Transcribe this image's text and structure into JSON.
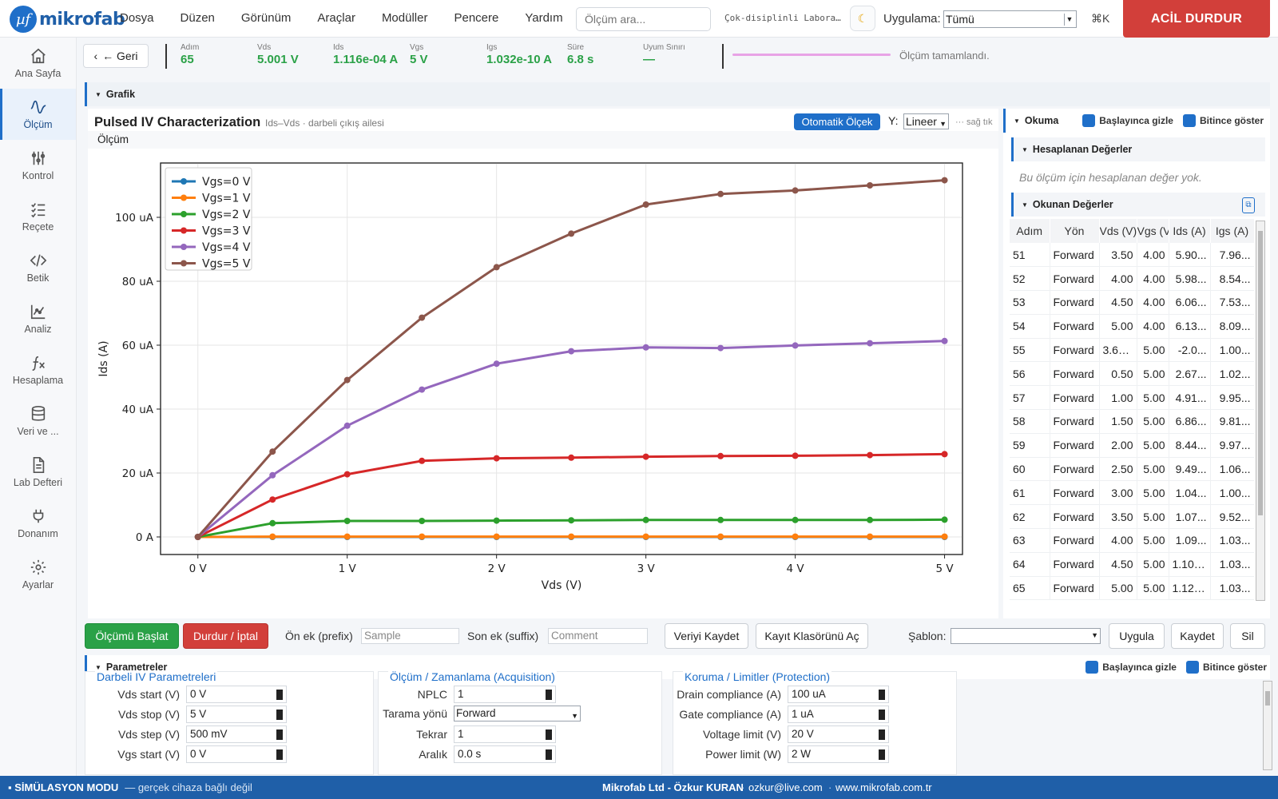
{
  "app": {
    "logo_mark": "µf",
    "logo_text": "mikrofab"
  },
  "menu": [
    "Dosya",
    "Düzen",
    "Görünüm",
    "Araçlar",
    "Modüller",
    "Pencere",
    "Yardım"
  ],
  "search": {
    "placeholder": "Ölçüm ara..."
  },
  "lab_name": "Çok-disiplinli Laboratuvar",
  "application": {
    "label": "Uygulama:",
    "value": "Tümü"
  },
  "shortcut": "⌘K",
  "estop": "ACİL DURDUR",
  "sidebar": [
    {
      "label": "Ana Sayfa",
      "icon": "home-icon"
    },
    {
      "label": "Ölçüm",
      "icon": "waveform-icon",
      "active": true
    },
    {
      "label": "Kontrol",
      "icon": "sliders-icon"
    },
    {
      "label": "Reçete",
      "icon": "checklist-icon"
    },
    {
      "label": "Betik",
      "icon": "code-icon"
    },
    {
      "label": "Analiz",
      "icon": "analytics-icon"
    },
    {
      "label": "Hesaplama",
      "icon": "function-icon"
    },
    {
      "label": "Veri ve ...",
      "icon": "database-icon"
    },
    {
      "label": "Lab Defteri",
      "icon": "notebook-icon"
    },
    {
      "label": "Donanım",
      "icon": "plug-icon"
    },
    {
      "label": "Ayarlar",
      "icon": "gear-icon"
    }
  ],
  "status": {
    "back": "← Geri",
    "items": [
      {
        "key": "Adım",
        "value": "65"
      },
      {
        "key": "Vds",
        "value": "5.001 V"
      },
      {
        "key": "Ids",
        "value": "1.116e-04 A"
      },
      {
        "key": "Vgs",
        "value": "5 V"
      },
      {
        "key": "Igs",
        "value": "1.032e-10 A"
      },
      {
        "key": "Süre",
        "value": "6.8 s"
      },
      {
        "key": "Uyum Sınırı",
        "value": "—"
      }
    ],
    "progress": 1.0,
    "progress_text": "Ölçüm tamamlandı."
  },
  "graph_panel": {
    "title": "Grafik"
  },
  "chart": {
    "title": "Pulsed IV Characterization",
    "subtitle": "Ids–Vds · darbeli çıkış ailesi",
    "autoscale": "Otomatik Ölçek",
    "y_label": "Y:",
    "y_scale": "Lineer",
    "right_click_hint": "··· sağ tık",
    "measurement_title": "Ölçüm"
  },
  "chart_data": {
    "type": "line",
    "xlabel": "Vds (V)",
    "ylabel": "Ids (A)",
    "xlim": [
      -0.25,
      5.12
    ],
    "ylim": [
      -5.5,
      117
    ],
    "x_ticks": [
      {
        "v": 0,
        "label": "0 V"
      },
      {
        "v": 1,
        "label": "1 V"
      },
      {
        "v": 2,
        "label": "2 V"
      },
      {
        "v": 3,
        "label": "3 V"
      },
      {
        "v": 4,
        "label": "4 V"
      },
      {
        "v": 5,
        "label": "5 V"
      }
    ],
    "y_ticks": [
      {
        "v": 0,
        "label": "0 A"
      },
      {
        "v": 20,
        "label": "20 uA"
      },
      {
        "v": 40,
        "label": "40 uA"
      },
      {
        "v": 60,
        "label": "60 uA"
      },
      {
        "v": 80,
        "label": "80 uA"
      },
      {
        "v": 100,
        "label": "100 uA"
      }
    ],
    "y_unit": "uA",
    "grid": true,
    "legend_position": "top-left",
    "x": [
      0,
      0.5,
      1,
      1.5,
      2,
      2.5,
      3,
      3.5,
      4,
      4.5,
      5
    ],
    "series": [
      {
        "name": "Vgs=0 V",
        "color": "#1f77b4",
        "values": [
          0,
          0,
          0,
          0,
          0,
          0,
          0,
          0,
          0,
          0,
          0
        ]
      },
      {
        "name": "Vgs=1 V",
        "color": "#ff7f0e",
        "values": [
          0,
          0.1,
          0.1,
          0.1,
          0.1,
          0.1,
          0.1,
          0.1,
          0.1,
          0.1,
          0.1
        ]
      },
      {
        "name": "Vgs=2 V",
        "color": "#2ca02c",
        "values": [
          0,
          4.3,
          5.0,
          5.0,
          5.1,
          5.2,
          5.3,
          5.3,
          5.3,
          5.3,
          5.4
        ]
      },
      {
        "name": "Vgs=3 V",
        "color": "#d62728",
        "values": [
          0,
          11.7,
          19.6,
          23.8,
          24.6,
          24.8,
          25.1,
          25.3,
          25.4,
          25.6,
          25.9
        ]
      },
      {
        "name": "Vgs=4 V",
        "color": "#9467bd",
        "values": [
          0,
          19.3,
          34.8,
          46.1,
          54.2,
          58.1,
          59.3,
          59.1,
          59.9,
          60.6,
          61.3
        ]
      },
      {
        "name": "Vgs=5 V",
        "color": "#8c564b",
        "values": [
          0,
          26.7,
          49.1,
          68.6,
          84.4,
          94.9,
          104.0,
          107.3,
          108.4,
          110.0,
          111.6
        ]
      }
    ]
  },
  "right": {
    "reading_title": "Okuma",
    "hide_on_start": "Başlayınca gizle",
    "show_on_finish": "Bitince göster",
    "computed_title": "Hesaplanan Değerler",
    "computed_empty": "Bu ölçüm için hesaplanan değer yok.",
    "read_title": "Okunan Değerler",
    "columns": [
      "Adım",
      "Yön",
      "Vds (V)",
      "Vgs (V)",
      "Ids (A)",
      "Igs (A)"
    ],
    "rows": [
      [
        "51",
        "Forward",
        "3.50",
        "4.00",
        "5.90...",
        "7.96..."
      ],
      [
        "52",
        "Forward",
        "4.00",
        "4.00",
        "5.98...",
        "8.54..."
      ],
      [
        "53",
        "Forward",
        "4.50",
        "4.00",
        "6.06...",
        "7.53..."
      ],
      [
        "54",
        "Forward",
        "5.00",
        "4.00",
        "6.13...",
        "8.09..."
      ],
      [
        "55",
        "Forward",
        "3.68...",
        "5.00",
        "-2.0...",
        "1.00..."
      ],
      [
        "56",
        "Forward",
        "0.50",
        "5.00",
        "2.67...",
        "1.02..."
      ],
      [
        "57",
        "Forward",
        "1.00",
        "5.00",
        "4.91...",
        "9.95..."
      ],
      [
        "58",
        "Forward",
        "1.50",
        "5.00",
        "6.86...",
        "9.81..."
      ],
      [
        "59",
        "Forward",
        "2.00",
        "5.00",
        "8.44...",
        "9.97..."
      ],
      [
        "60",
        "Forward",
        "2.50",
        "5.00",
        "9.49...",
        "1.06..."
      ],
      [
        "61",
        "Forward",
        "3.00",
        "5.00",
        "1.04...",
        "1.00..."
      ],
      [
        "62",
        "Forward",
        "3.50",
        "5.00",
        "1.07...",
        "9.52..."
      ],
      [
        "63",
        "Forward",
        "4.00",
        "5.00",
        "1.09...",
        "1.03..."
      ],
      [
        "64",
        "Forward",
        "4.50",
        "5.00",
        "1.10e...",
        "1.03..."
      ],
      [
        "65",
        "Forward",
        "5.00",
        "5.00",
        "1.12e...",
        "1.03..."
      ]
    ]
  },
  "controls": {
    "start": "Ölçümü Başlat",
    "stop": "Durdur / İptal",
    "prefix_label": "Ön ek (prefix)",
    "prefix_placeholder": "Sample",
    "suffix_label": "Son ek (suffix)",
    "suffix_placeholder": "Comment",
    "save_data": "Veriyi Kaydet",
    "open_folder": "Kayıt Klasörünü Aç",
    "template_label": "Şablon:",
    "template_value": "",
    "apply": "Uygula",
    "save": "Kaydet",
    "delete": "Sil"
  },
  "params": {
    "title": "Parametreler",
    "hide_on_start": "Başlayınca gizle",
    "show_on_finish": "Bitince göster",
    "groups": [
      {
        "title": "Darbeli IV Parametreleri",
        "rows": [
          {
            "label": "Vds start (V)",
            "value": "0 V"
          },
          {
            "label": "Vds stop (V)",
            "value": "5 V"
          },
          {
            "label": "Vds step (V)",
            "value": "500 mV"
          },
          {
            "label": "Vgs start (V)",
            "value": "0 V"
          }
        ]
      },
      {
        "title": "Ölçüm / Zamanlama (Acquisition)",
        "rows": [
          {
            "label": "NPLC",
            "value": "1"
          },
          {
            "label": "Tarama yönü",
            "value": "Forward"
          },
          {
            "label": "Tekrar",
            "value": "1"
          },
          {
            "label": "Aralık",
            "value": "0.0 s"
          }
        ]
      },
      {
        "title": "Koruma / Limitler (Protection)",
        "rows": [
          {
            "label": "Drain compliance (A)",
            "value": "100 uA"
          },
          {
            "label": "Gate compliance (A)",
            "value": "1 uA"
          },
          {
            "label": "Voltage limit (V)",
            "value": "20 V"
          },
          {
            "label": "Power limit (W)",
            "value": "2 W"
          }
        ]
      }
    ]
  },
  "footer": {
    "sim": "SİMÜLASYON MODU",
    "sim_desc": "— gerçek cihaza bağlı değil",
    "credit": "Mikrofab Ltd - Özkur KURAN",
    "email": "ozkur@live.com",
    "web": "www.mikrofab.com.tr",
    "sep": "·"
  }
}
